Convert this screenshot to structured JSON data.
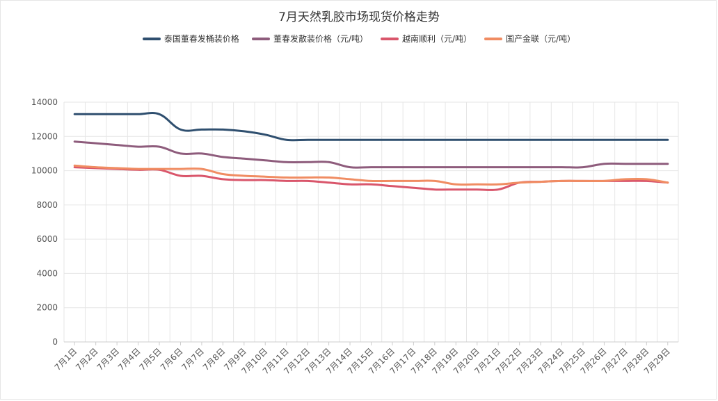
{
  "chart_data": {
    "type": "line",
    "title": "7月天然乳胶市场现货价格走势",
    "xlabel": "",
    "ylabel": "",
    "ylim": [
      0,
      14000
    ],
    "yticks": [
      0,
      2000,
      4000,
      6000,
      8000,
      10000,
      12000,
      14000
    ],
    "grid": true,
    "legend_position": "top",
    "categories": [
      "7月1日",
      "7月2日",
      "7月3日",
      "7月4日",
      "7月5日",
      "7月6日",
      "7月7日",
      "7月8日",
      "7月9日",
      "7月10日",
      "7月11日",
      "7月12日",
      "7月13日",
      "7月14日",
      "7月15日",
      "7月16日",
      "7月17日",
      "7月18日",
      "7月19日",
      "7月20日",
      "7月21日",
      "7月22日",
      "7月23日",
      "7月24日",
      "7月25日",
      "7月26日",
      "7月27日",
      "7月28日",
      "7月29日"
    ],
    "series": [
      {
        "name": "泰国董春发桶装价格",
        "color": "#2f4f6f",
        "values": [
          13300,
          13300,
          13300,
          13300,
          13300,
          12400,
          12400,
          12400,
          12300,
          12100,
          11800,
          11800,
          11800,
          11800,
          11800,
          11800,
          11800,
          11800,
          11800,
          11800,
          11800,
          11800,
          11800,
          11800,
          11800,
          11800,
          11800,
          11800,
          11800
        ]
      },
      {
        "name": "董春发散装价格（元/吨）",
        "color": "#8e5c7c",
        "values": [
          11700,
          11600,
          11500,
          11400,
          11400,
          11000,
          11000,
          10800,
          10700,
          10600,
          10500,
          10500,
          10500,
          10200,
          10200,
          10200,
          10200,
          10200,
          10200,
          10200,
          10200,
          10200,
          10200,
          10200,
          10200,
          10400,
          10400,
          10400,
          10400
        ]
      },
      {
        "name": "越南顺利（元/吨）",
        "color": "#d9566b",
        "values": [
          10200,
          10150,
          10100,
          10050,
          10050,
          9700,
          9700,
          9500,
          9450,
          9450,
          9400,
          9400,
          9300,
          9200,
          9200,
          9100,
          9000,
          8900,
          8900,
          8900,
          8900,
          9300,
          9350,
          9400,
          9400,
          9400,
          9400,
          9400,
          9300
        ]
      },
      {
        "name": "国产金联（元/吨）",
        "color": "#f08c62",
        "values": [
          10300,
          10200,
          10150,
          10100,
          10100,
          10100,
          10100,
          9800,
          9700,
          9650,
          9600,
          9600,
          9600,
          9500,
          9400,
          9400,
          9400,
          9400,
          9200,
          9200,
          9200,
          9300,
          9350,
          9400,
          9400,
          9400,
          9500,
          9500,
          9300
        ]
      }
    ]
  }
}
